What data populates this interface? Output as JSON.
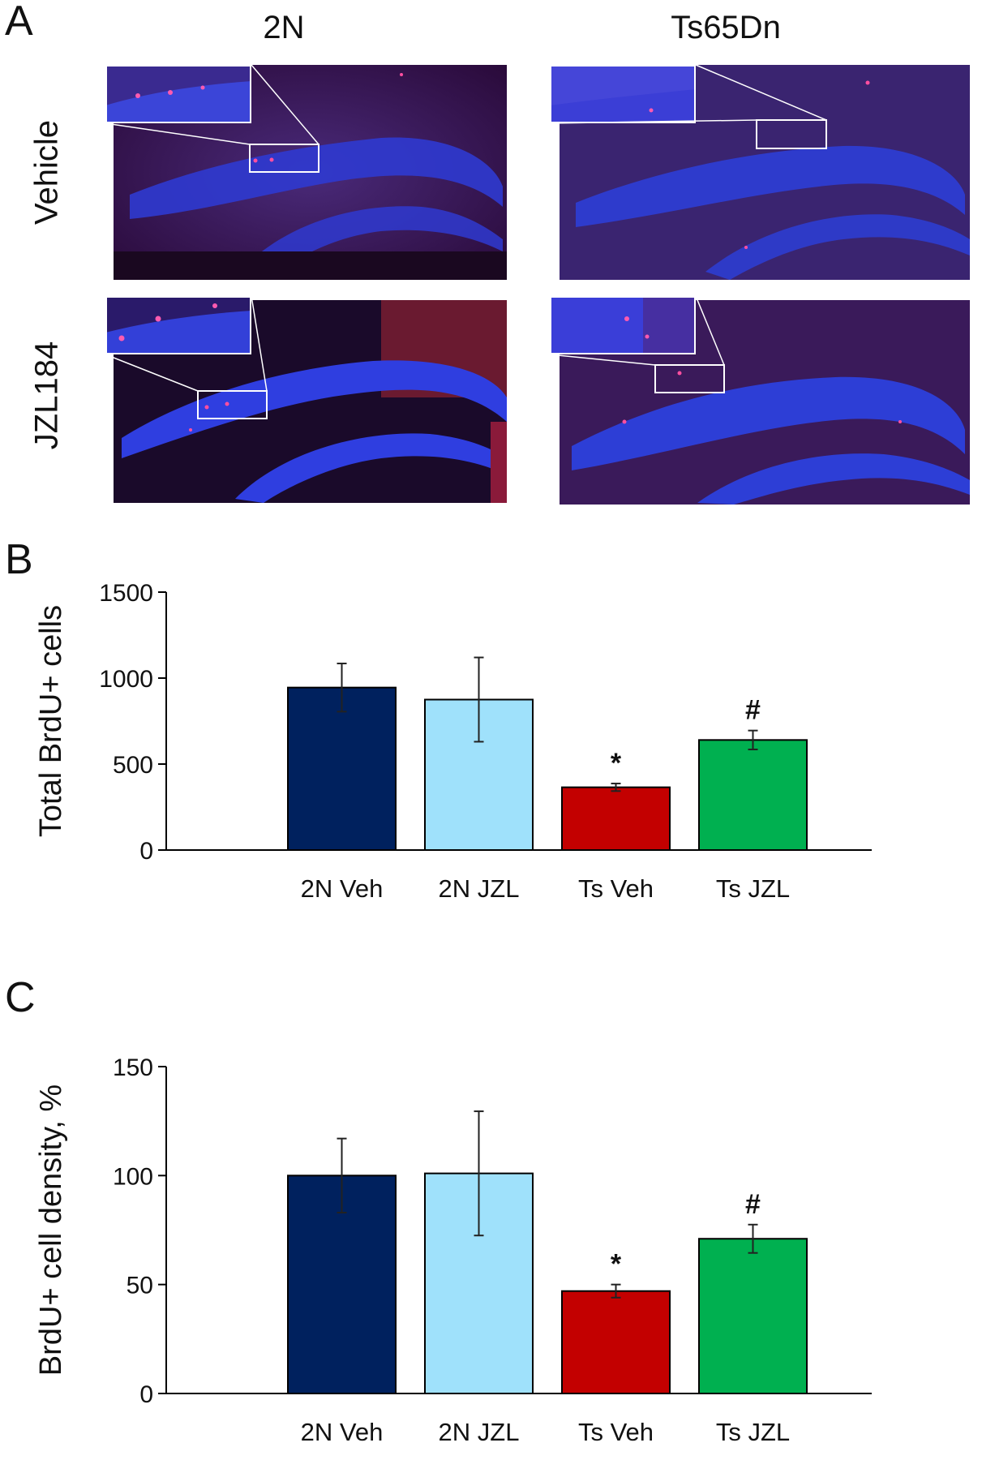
{
  "panels": {
    "a": "A",
    "b": "B",
    "c": "C"
  },
  "micrographs": {
    "col_labels": [
      "2N",
      "Ts65Dn"
    ],
    "row_labels": [
      "Vehicle",
      "JZL184"
    ]
  },
  "colors": {
    "2n_veh": "#00215e",
    "2n_jzl": "#9fe1fb",
    "ts_veh": "#c30000",
    "ts_jzl": "#00b050"
  },
  "chart_data": [
    {
      "type": "bar",
      "panel": "B",
      "ylabel": "Total BrdU+ cells",
      "xlabel": "",
      "ylim": [
        0,
        1500
      ],
      "yticks": [
        0,
        500,
        1000,
        1500
      ],
      "categories": [
        "2N Veh",
        "2N JZL",
        "Ts Veh",
        "Ts JZL"
      ],
      "values": [
        945,
        875,
        365,
        640
      ],
      "errors": [
        140,
        245,
        22,
        55
      ],
      "annotations": [
        "",
        "",
        "*",
        "#"
      ],
      "colors": [
        "#00215e",
        "#9fe1fb",
        "#c30000",
        "#00b050"
      ],
      "grid": false
    },
    {
      "type": "bar",
      "panel": "C",
      "ylabel": "BrdU+ cell density, %",
      "xlabel": "",
      "ylim": [
        0,
        150
      ],
      "yticks": [
        0,
        50,
        100,
        150
      ],
      "categories": [
        "2N Veh",
        "2N JZL",
        "Ts Veh",
        "Ts JZL"
      ],
      "values": [
        100,
        101,
        47,
        71
      ],
      "errors": [
        17,
        28.5,
        3,
        6.5
      ],
      "annotations": [
        "",
        "",
        "*",
        "#"
      ],
      "colors": [
        "#00215e",
        "#9fe1fb",
        "#c30000",
        "#00b050"
      ],
      "grid": false
    }
  ]
}
